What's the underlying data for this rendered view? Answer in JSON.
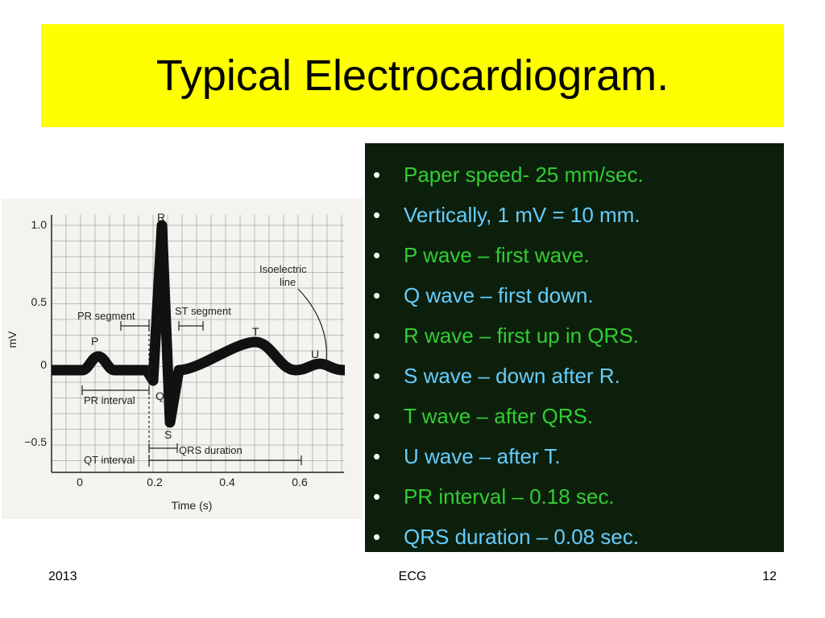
{
  "slide": {
    "title": "Typical Electrocardiogram.",
    "bullets": [
      {
        "text": "Paper speed- 25 mm/sec.",
        "color": "#33cc33"
      },
      {
        "text": "Vertically, 1 mV = 10 mm.",
        "color": "#66ccff"
      },
      {
        "text": "P wave – first wave.",
        "color": "#33cc33"
      },
      {
        "text": "Q wave – first down.",
        "color": "#66ccff"
      },
      {
        "text": "R wave – first up in QRS.",
        "color": "#33cc33"
      },
      {
        "text": "S wave – down after R.",
        "color": "#66ccff"
      },
      {
        "text": "T wave – after QRS.",
        "color": "#33cc33"
      },
      {
        "text": "U wave – after T.",
        "color": "#66ccff"
      },
      {
        "text": "PR interval – 0.18 sec.",
        "color": "#33cc33"
      },
      {
        "text": "QRS duration – 0.08 sec.",
        "color": "#66ccff"
      }
    ],
    "bullet_symbol": "•",
    "footer": {
      "left": "2013",
      "center": "ECG",
      "right": "12"
    },
    "colors": {
      "title_bg": "#ffff00",
      "panel_bg": "#0b1f0b"
    }
  },
  "diagram": {
    "y_ticks": [
      "1.0",
      "0.5",
      "0",
      "−0.5"
    ],
    "x_ticks": [
      "0",
      "0.2",
      "0.4",
      "0.6"
    ],
    "y_label": "mV",
    "x_label": "Time (s)",
    "wave_labels": {
      "P": "P",
      "Q": "Q",
      "R": "R",
      "S": "S",
      "T": "T",
      "U": "U"
    },
    "annotations": {
      "pr_segment": "PR segment",
      "st_segment": "ST segment",
      "pr_interval": "PR interval",
      "qrs_duration": "QRS duration",
      "qt_interval": "QT interval",
      "isoelectric_line": [
        "Isoelectric",
        "line"
      ]
    }
  }
}
